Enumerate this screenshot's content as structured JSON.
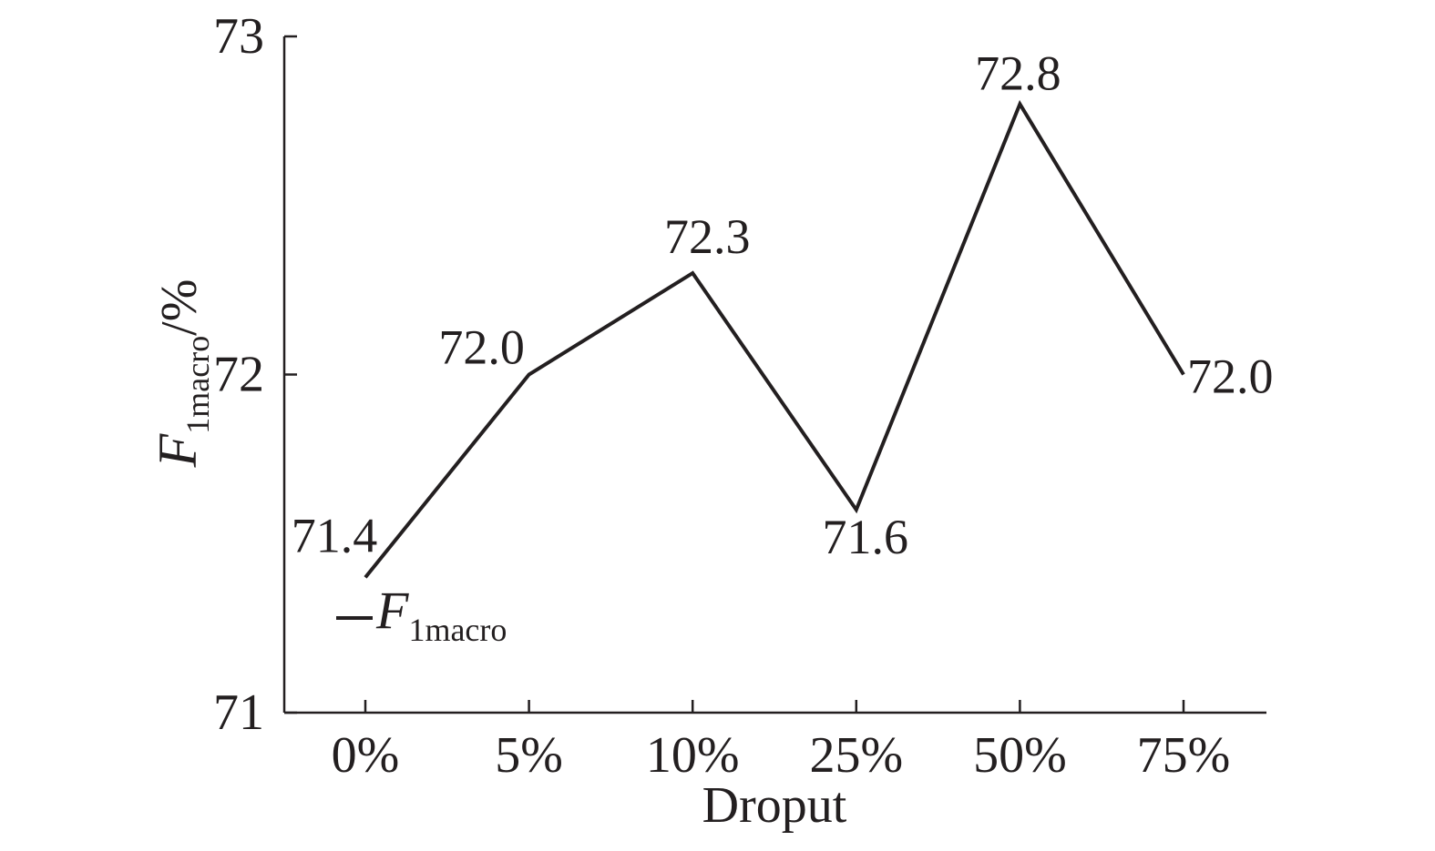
{
  "chart_data": {
    "type": "line",
    "categories": [
      "0%",
      "5%",
      "10%",
      "25%",
      "50%",
      "75%"
    ],
    "series": [
      {
        "name": "F1macro",
        "values": [
          71.4,
          72.0,
          72.3,
          71.6,
          72.8,
          72.0
        ]
      }
    ],
    "data_labels": [
      "71.4",
      "72.0",
      "72.3",
      "71.6",
      "72.8",
      "72.0"
    ],
    "xlabel": "Droput",
    "ylabel": {
      "main": "F",
      "subscript": "1macro",
      "suffix": "/%"
    },
    "legend": {
      "main": "F",
      "subscript": "1macro",
      "placement": "bottom-left"
    },
    "ylim": [
      71,
      73
    ],
    "yticks": [
      71,
      72,
      73
    ],
    "ytick_labels": [
      "71",
      "72",
      "73"
    ],
    "grid": false,
    "colors": {
      "line": "#231f20",
      "axis": "#231f20",
      "background": "#ffffff"
    }
  }
}
